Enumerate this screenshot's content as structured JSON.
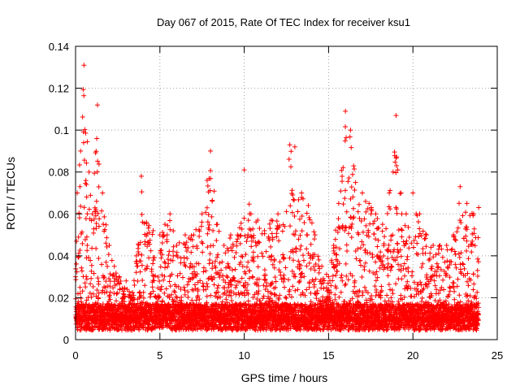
{
  "chart_data": {
    "type": "scatter",
    "title": "Day 067 of 2015, Rate Of TEC Index for receiver ksu1",
    "xlabel": "GPS time / hours",
    "ylabel": "ROTI / TECUs",
    "xlim": [
      0,
      25
    ],
    "ylim": [
      0,
      0.14
    ],
    "xticks": [
      0,
      5,
      10,
      15,
      20,
      25
    ],
    "xtick_labels": [
      "0",
      "5",
      "10",
      "15",
      "20",
      "25"
    ],
    "yticks": [
      0,
      0.02,
      0.04,
      0.06,
      0.08,
      0.1,
      0.12,
      0.14
    ],
    "ytick_labels": [
      "0",
      "0.02",
      "0.04",
      "0.06",
      "0.08",
      "0.1",
      "0.12",
      "0.14"
    ],
    "grid": true,
    "marker": "+",
    "color": "#ff0000",
    "series": [
      {
        "name": "ROTI",
        "envelope_x": [
          0.0,
          0.1,
          0.3,
          0.5,
          0.8,
          1.0,
          1.3,
          1.6,
          2.0,
          2.3,
          2.6,
          3.0,
          3.3,
          3.6,
          3.9,
          4.2,
          4.6,
          4.8,
          5.0,
          5.3,
          5.6,
          6.0,
          6.5,
          7.0,
          7.5,
          8.0,
          8.4,
          8.8,
          9.2,
          9.6,
          10.0,
          10.4,
          10.8,
          11.2,
          11.6,
          12.0,
          12.4,
          12.7,
          13.0,
          13.4,
          13.8,
          14.2,
          14.6,
          15.0,
          15.3,
          15.6,
          16.0,
          16.3,
          16.6,
          17.0,
          17.4,
          17.8,
          18.2,
          18.6,
          19.0,
          19.3,
          19.6,
          20.0,
          20.4,
          20.8,
          21.2,
          21.6,
          22.0,
          22.4,
          22.8,
          23.2,
          23.6,
          23.9
        ],
        "envelope_peak": [
          0.03,
          0.07,
          0.09,
          0.131,
          0.08,
          0.06,
          0.112,
          0.07,
          0.045,
          0.035,
          0.03,
          0.028,
          0.02,
          0.04,
          0.078,
          0.056,
          0.052,
          0.02,
          0.05,
          0.055,
          0.06,
          0.045,
          0.05,
          0.05,
          0.06,
          0.09,
          0.055,
          0.045,
          0.05,
          0.05,
          0.081,
          0.06,
          0.057,
          0.052,
          0.057,
          0.06,
          0.054,
          0.093,
          0.092,
          0.07,
          0.064,
          0.05,
          0.035,
          0.03,
          0.045,
          0.065,
          0.109,
          0.1,
          0.075,
          0.07,
          0.065,
          0.06,
          0.055,
          0.07,
          0.107,
          0.07,
          0.06,
          0.07,
          0.06,
          0.05,
          0.045,
          0.045,
          0.045,
          0.05,
          0.073,
          0.065,
          0.06,
          0.063
        ],
        "base_level": 0.009
      }
    ]
  }
}
